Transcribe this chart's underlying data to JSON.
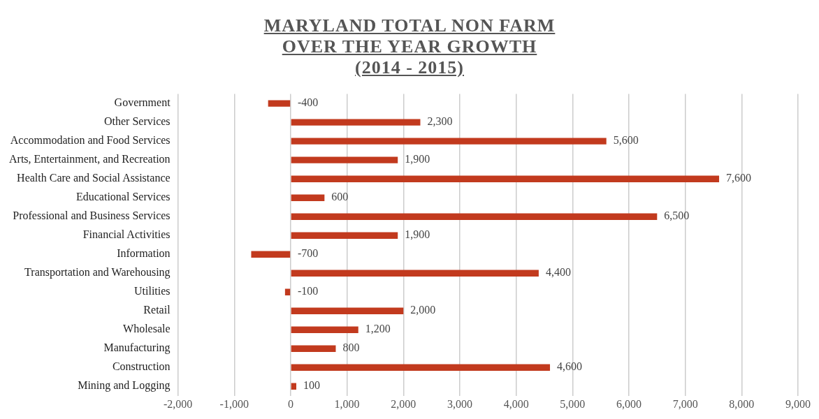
{
  "chart_data": {
    "type": "bar",
    "orientation": "horizontal",
    "title": "MARYLAND TOTAL NON FARM\nOVER THE YEAR GROWTH\n(2014 - 2015)",
    "categories": [
      "Government",
      "Other Services",
      "Accommodation and Food Services",
      "Arts, Entertainment, and Recreation",
      "Health Care and Social Assistance",
      "Educational Services",
      "Professional and Business Services",
      "Financial Activities",
      "Information",
      "Transportation and Warehousing",
      "Utilities",
      "Retail",
      "Wholesale",
      "Manufacturing",
      "Construction",
      "Mining and Logging"
    ],
    "values": [
      -400,
      2300,
      5600,
      1900,
      7600,
      600,
      6500,
      1900,
      -700,
      4400,
      -100,
      2000,
      1200,
      800,
      4600,
      100
    ],
    "value_labels": [
      "-400",
      "2,300",
      "5,600",
      "1,900",
      "7,600",
      "600",
      "6,500",
      "1,900",
      "-700",
      "4,400",
      "-100",
      "2,000",
      "1,200",
      "800",
      "4,600",
      "100"
    ],
    "color": "#c23a1e",
    "xlim": [
      -2000,
      9000
    ],
    "xticks": [
      {
        "value": -2000,
        "label": "-2,000"
      },
      {
        "value": -1000,
        "label": "-1,000"
      },
      0,
      {
        "value": 1000,
        "label": "1,000"
      },
      {
        "value": 2000,
        "label": "2,000"
      },
      {
        "value": 3000,
        "label": "3,000"
      },
      {
        "value": 4000,
        "label": "4,000"
      },
      {
        "value": 5000,
        "label": "5,000"
      },
      {
        "value": 6000,
        "label": "6,000"
      },
      {
        "value": 7000,
        "label": "7,000"
      },
      {
        "value": 8000,
        "label": "8,000"
      },
      {
        "value": 9000,
        "label": "9,000"
      }
    ],
    "grid": "x",
    "legend": false
  }
}
